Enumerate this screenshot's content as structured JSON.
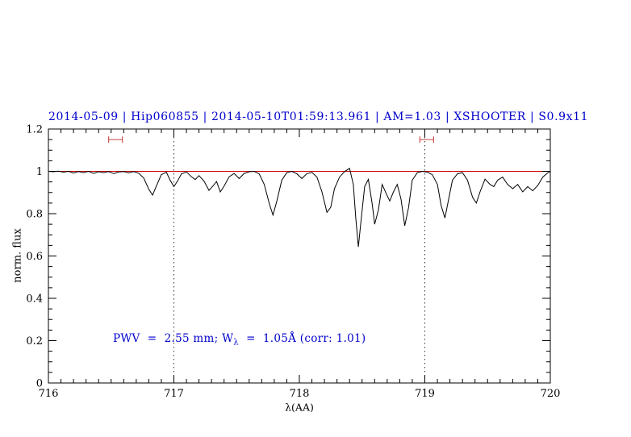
{
  "chart_data": {
    "type": "line",
    "title": "2014-05-09 | Hip060855 | 2014-05-10T01:59:13.961 | AM=1.03 | XSHOOTER | S0.9x11",
    "title_color": "#0000cc",
    "xlabel": "λ(AA)",
    "ylabel": "norm. flux",
    "xlim": [
      716,
      720
    ],
    "ylim": [
      0,
      1.2
    ],
    "xticks": [
      716,
      717,
      718,
      719,
      720
    ],
    "xtick_labels": [
      "716",
      "717",
      "718",
      "719",
      "720"
    ],
    "yticks": [
      0,
      0.2,
      0.4,
      0.6,
      0.8,
      1.0,
      1.2
    ],
    "ytick_labels": [
      "0",
      "0.2",
      "0.4",
      "0.6",
      "0.8",
      "1",
      "1.2"
    ],
    "x_minor_step": 0.1,
    "y_minor_step": 0.05,
    "grid": "off",
    "vlines": {
      "positions": [
        717,
        719
      ],
      "style": "dotted",
      "color": "#000000"
    },
    "continuum": {
      "y": 1.0,
      "color": "#cc0000"
    },
    "marker_color": "#cc4444",
    "markers": [
      {
        "x1": 716.48,
        "x2": 716.59,
        "y": 1.15
      },
      {
        "x1": 718.96,
        "x2": 719.07,
        "y": 1.15
      }
    ],
    "annotation": {
      "part1": "PWV  =  2.55 mm; W",
      "sub": "λ",
      "part2": "  =  1.05Å (corr: 1.01)",
      "color": "#0000cc"
    },
    "series": [
      {
        "name": "telluric spectrum",
        "color": "#000000",
        "points": [
          [
            716.0,
            1.0
          ],
          [
            716.04,
            0.998
          ],
          [
            716.08,
            1.001
          ],
          [
            716.12,
            0.996
          ],
          [
            716.16,
            1.0
          ],
          [
            716.2,
            0.992
          ],
          [
            716.24,
            0.999
          ],
          [
            716.28,
            0.994
          ],
          [
            716.32,
            1.0
          ],
          [
            716.36,
            0.99
          ],
          [
            716.4,
            0.998
          ],
          [
            716.44,
            0.994
          ],
          [
            716.48,
            0.999
          ],
          [
            716.52,
            0.989
          ],
          [
            716.56,
            0.997
          ],
          [
            716.6,
            0.999
          ],
          [
            716.64,
            0.993
          ],
          [
            716.68,
            0.999
          ],
          [
            716.72,
            0.991
          ],
          [
            716.76,
            0.968
          ],
          [
            716.8,
            0.915
          ],
          [
            716.83,
            0.888
          ],
          [
            716.86,
            0.93
          ],
          [
            716.9,
            0.984
          ],
          [
            716.94,
            0.996
          ],
          [
            716.97,
            0.958
          ],
          [
            717.0,
            0.928
          ],
          [
            717.03,
            0.955
          ],
          [
            717.06,
            0.988
          ],
          [
            717.1,
            0.997
          ],
          [
            717.14,
            0.974
          ],
          [
            717.17,
            0.961
          ],
          [
            717.2,
            0.98
          ],
          [
            717.24,
            0.954
          ],
          [
            717.28,
            0.91
          ],
          [
            717.31,
            0.93
          ],
          [
            717.34,
            0.952
          ],
          [
            717.37,
            0.903
          ],
          [
            717.4,
            0.93
          ],
          [
            717.44,
            0.974
          ],
          [
            717.48,
            0.99
          ],
          [
            717.52,
            0.966
          ],
          [
            717.56,
            0.99
          ],
          [
            717.6,
            0.998
          ],
          [
            717.64,
            1.0
          ],
          [
            717.68,
            0.988
          ],
          [
            717.72,
            0.938
          ],
          [
            717.76,
            0.848
          ],
          [
            717.79,
            0.793
          ],
          [
            717.82,
            0.858
          ],
          [
            717.86,
            0.958
          ],
          [
            717.9,
            0.994
          ],
          [
            717.94,
            1.0
          ],
          [
            717.98,
            0.988
          ],
          [
            718.02,
            0.966
          ],
          [
            718.06,
            0.989
          ],
          [
            718.1,
            0.995
          ],
          [
            718.14,
            0.973
          ],
          [
            718.18,
            0.903
          ],
          [
            718.22,
            0.806
          ],
          [
            718.25,
            0.83
          ],
          [
            718.28,
            0.918
          ],
          [
            718.32,
            0.973
          ],
          [
            718.36,
            0.999
          ],
          [
            718.4,
            1.014
          ],
          [
            718.43,
            0.938
          ],
          [
            718.45,
            0.775
          ],
          [
            718.47,
            0.643
          ],
          [
            718.49,
            0.758
          ],
          [
            718.52,
            0.928
          ],
          [
            718.55,
            0.962
          ],
          [
            718.58,
            0.848
          ],
          [
            718.6,
            0.75
          ],
          [
            718.63,
            0.818
          ],
          [
            718.66,
            0.938
          ],
          [
            718.69,
            0.898
          ],
          [
            718.72,
            0.86
          ],
          [
            718.75,
            0.903
          ],
          [
            718.78,
            0.938
          ],
          [
            718.81,
            0.868
          ],
          [
            718.84,
            0.743
          ],
          [
            718.87,
            0.828
          ],
          [
            718.9,
            0.958
          ],
          [
            718.94,
            0.994
          ],
          [
            718.98,
            1.0
          ],
          [
            719.02,
            0.996
          ],
          [
            719.06,
            0.984
          ],
          [
            719.1,
            0.938
          ],
          [
            719.13,
            0.838
          ],
          [
            719.16,
            0.78
          ],
          [
            719.19,
            0.868
          ],
          [
            719.22,
            0.958
          ],
          [
            719.26,
            0.988
          ],
          [
            719.3,
            0.994
          ],
          [
            719.34,
            0.958
          ],
          [
            719.38,
            0.878
          ],
          [
            719.41,
            0.85
          ],
          [
            719.44,
            0.903
          ],
          [
            719.48,
            0.963
          ],
          [
            719.52,
            0.938
          ],
          [
            719.55,
            0.928
          ],
          [
            719.58,
            0.958
          ],
          [
            719.62,
            0.973
          ],
          [
            719.66,
            0.938
          ],
          [
            719.7,
            0.918
          ],
          [
            719.74,
            0.938
          ],
          [
            719.78,
            0.903
          ],
          [
            719.82,
            0.928
          ],
          [
            719.86,
            0.908
          ],
          [
            719.9,
            0.933
          ],
          [
            719.94,
            0.973
          ],
          [
            719.98,
            0.993
          ],
          [
            720.0,
            1.0
          ]
        ]
      }
    ]
  }
}
